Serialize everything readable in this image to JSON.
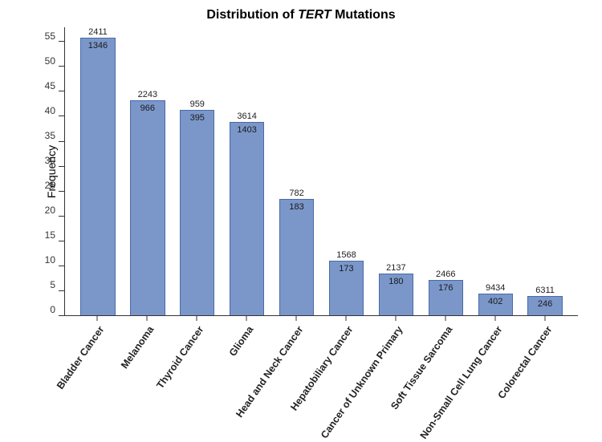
{
  "chart": {
    "type": "bar",
    "title_prefix": "Distribution of ",
    "title_gene": "TERT",
    "title_suffix": " Mutations",
    "title_fontsize": 14,
    "ylabel": "Frequency",
    "ylabel_fontsize": 14,
    "ylim": [
      0,
      58
    ],
    "yticks": [
      0,
      5,
      10,
      15,
      20,
      25,
      30,
      35,
      40,
      45,
      50,
      55
    ],
    "bar_color": "#7b97ca",
    "bar_border": "#4a6aa8",
    "axis_color": "#333333",
    "background_color": "#ffffff",
    "tick_label_fontsize": 12,
    "bar_label_fontsize": 11,
    "xlabel_fontsize": 12.5,
    "xlabel_rotation": -55,
    "bar_width_ratio": 0.7,
    "categories": [
      "Bladder Cancer",
      "Melanoma",
      "Thyroid Cancer",
      "Glioma",
      "Head and Neck Cancer",
      "Hepatobiliary Cancer",
      "Cancer of Unknown Primary",
      "Soft Tissue Sarcoma",
      "Non-Small Cell Lung Cancer",
      "Colorectal Cancer"
    ],
    "top_labels": [
      2411,
      2243,
      959,
      3614,
      782,
      1568,
      2137,
      2466,
      9434,
      6311
    ],
    "inner_labels": [
      1346,
      966,
      395,
      1403,
      183,
      173,
      180,
      176,
      402,
      246
    ],
    "values": [
      55.8,
      43.1,
      41.2,
      38.8,
      23.4,
      11.0,
      8.4,
      7.1,
      4.3,
      3.9
    ]
  }
}
